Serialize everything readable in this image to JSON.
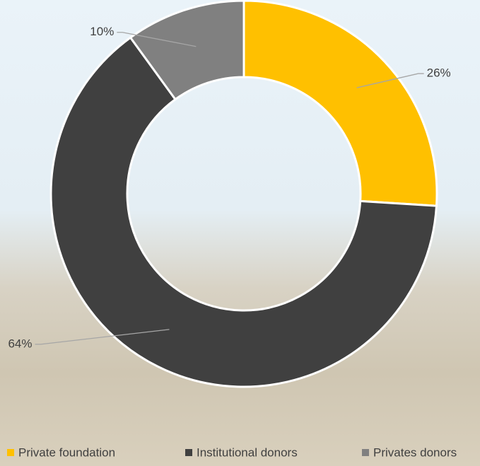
{
  "chart_data": {
    "type": "donut",
    "categories": [
      "Private foundation",
      "Institutional donors",
      "Privates donors"
    ],
    "values": [
      26,
      64,
      10
    ],
    "value_labels": [
      "26%",
      "64%",
      "10%"
    ],
    "colors": [
      "#ffc000",
      "#404040",
      "#808080"
    ],
    "legend": "bottom"
  }
}
